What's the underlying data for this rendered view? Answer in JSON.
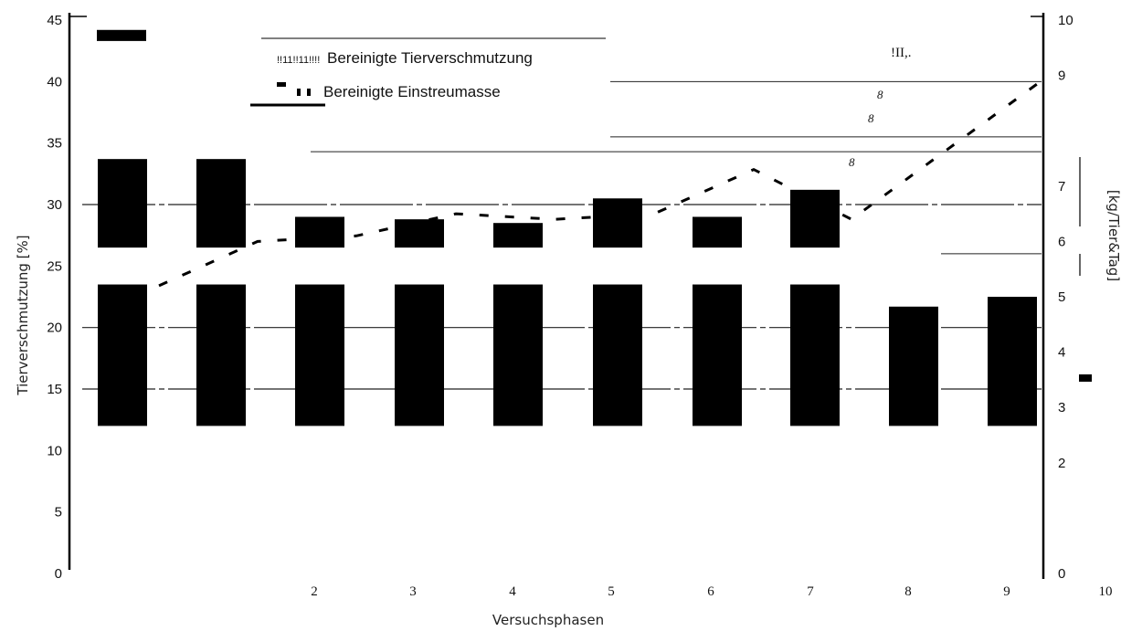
{
  "chart_data": {
    "type": "bar",
    "categories": [
      "",
      "2",
      "3",
      "4",
      "5",
      "6",
      "7",
      "8",
      "9",
      "10"
    ],
    "xlabel": "Versuchsphasen",
    "ylabel_left": "Tierverschmutzung [%]",
    "ylabel_right": "[kg/Tier&Tag]",
    "ylim_left": [
      0,
      45
    ],
    "ylim_right": [
      0,
      10
    ],
    "yticks_left": [
      0,
      5,
      10,
      15,
      20,
      25,
      30,
      35,
      40,
      45
    ],
    "yticks_right": [
      0,
      2,
      3,
      4,
      5,
      6,
      7,
      9,
      10
    ],
    "grid": "horizontal",
    "legend_position": "top-center",
    "series": [
      {
        "name": "Bereinigte Tierverschmutzung",
        "axis": "left",
        "values_lower_block_top": [
          23.5,
          23.5,
          23.5,
          23.5,
          23.5,
          23.5,
          23.5,
          23.5,
          21.7,
          22.5
        ],
        "values_upper_block_top": [
          33.7,
          33.7,
          29.0,
          28.8,
          28.5,
          30.5,
          29.0,
          31.2,
          null,
          null
        ],
        "bar_base": 12
      },
      {
        "name": "Bereinigte Einstreumasse",
        "axis": "right",
        "style": "dashed-line",
        "values": [
          5.2,
          6.0,
          6.1,
          6.5,
          6.4,
          6.5,
          7.3,
          6.4,
          7.7,
          9.0
        ]
      }
    ],
    "annotations": [
      "!II,.",
      "8",
      "8",
      "8"
    ],
    "legend_marker_text": "!!11!!11!!!!"
  },
  "colors": {
    "bar": "#000000",
    "line": "#000000",
    "grid": "#222222",
    "background": "#ffffff"
  }
}
